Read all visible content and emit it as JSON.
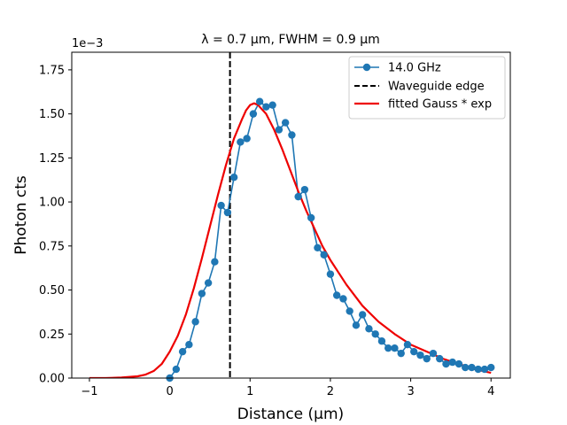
{
  "chart_data": {
    "type": "line",
    "title": "λ = 0.7 µm, FWHM = 0.9 µm",
    "xlabel": "Distance (μm)",
    "ylabel": "Photon cts",
    "y_offset_text": "1e−3",
    "xlim": [
      -1.22,
      4.24
    ],
    "ylim": [
      0,
      1.85
    ],
    "x_ticks": [
      -1,
      0,
      1,
      2,
      3,
      4
    ],
    "x_tick_labels": [
      "−1",
      "0",
      "1",
      "2",
      "3",
      "4"
    ],
    "y_ticks": [
      0.0,
      0.25,
      0.5,
      0.75,
      1.0,
      1.25,
      1.5,
      1.75
    ],
    "y_tick_labels": [
      "0.00",
      "0.25",
      "0.50",
      "0.75",
      "1.00",
      "1.25",
      "1.50",
      "1.75"
    ],
    "legend_position": "top-right",
    "series": [
      {
        "name": "14.0 GHz",
        "style": "line-markers",
        "color": "#1f77b4",
        "x": [
          0.0,
          0.08,
          0.16,
          0.24,
          0.32,
          0.4,
          0.48,
          0.56,
          0.64,
          0.72,
          0.8,
          0.88,
          0.96,
          1.04,
          1.12,
          1.2,
          1.28,
          1.36,
          1.44,
          1.52,
          1.6,
          1.68,
          1.76,
          1.84,
          1.92,
          2.0,
          2.08,
          2.16,
          2.24,
          2.32,
          2.4,
          2.48,
          2.56,
          2.64,
          2.72,
          2.8,
          2.88,
          2.96,
          3.04,
          3.12,
          3.2,
          3.28,
          3.36,
          3.44,
          3.52,
          3.6,
          3.68,
          3.76,
          3.84,
          3.92,
          4.0
        ],
        "y": [
          0.0,
          0.05,
          0.15,
          0.19,
          0.32,
          0.48,
          0.54,
          0.66,
          0.98,
          0.94,
          1.14,
          1.34,
          1.36,
          1.5,
          1.57,
          1.54,
          1.55,
          1.41,
          1.45,
          1.38,
          1.03,
          1.07,
          0.91,
          0.74,
          0.7,
          0.59,
          0.47,
          0.45,
          0.38,
          0.3,
          0.36,
          0.28,
          0.25,
          0.21,
          0.17,
          0.17,
          0.14,
          0.19,
          0.15,
          0.13,
          0.11,
          0.14,
          0.11,
          0.08,
          0.09,
          0.08,
          0.06,
          0.06,
          0.05,
          0.05,
          0.06
        ]
      },
      {
        "name": "Waveguide edge",
        "style": "vline-dashed",
        "color": "#000000",
        "x": 0.75
      },
      {
        "name": "fitted Gauss * exp",
        "style": "line",
        "color": "#ee0000",
        "x": [
          -1.0,
          -0.8,
          -0.6,
          -0.4,
          -0.3,
          -0.2,
          -0.1,
          0.0,
          0.1,
          0.2,
          0.3,
          0.4,
          0.5,
          0.6,
          0.7,
          0.8,
          0.9,
          0.95,
          1.0,
          1.05,
          1.1,
          1.2,
          1.3,
          1.4,
          1.5,
          1.6,
          1.7,
          1.8,
          1.9,
          2.0,
          2.2,
          2.4,
          2.6,
          2.8,
          3.0,
          3.2,
          3.4,
          3.6,
          3.8,
          4.0
        ],
        "y": [
          0.0,
          0.0,
          0.003,
          0.01,
          0.02,
          0.04,
          0.08,
          0.15,
          0.24,
          0.36,
          0.51,
          0.68,
          0.86,
          1.04,
          1.21,
          1.36,
          1.47,
          1.52,
          1.55,
          1.56,
          1.55,
          1.5,
          1.41,
          1.3,
          1.18,
          1.06,
          0.95,
          0.85,
          0.75,
          0.67,
          0.53,
          0.41,
          0.32,
          0.25,
          0.19,
          0.15,
          0.11,
          0.08,
          0.05,
          0.03
        ]
      }
    ]
  }
}
